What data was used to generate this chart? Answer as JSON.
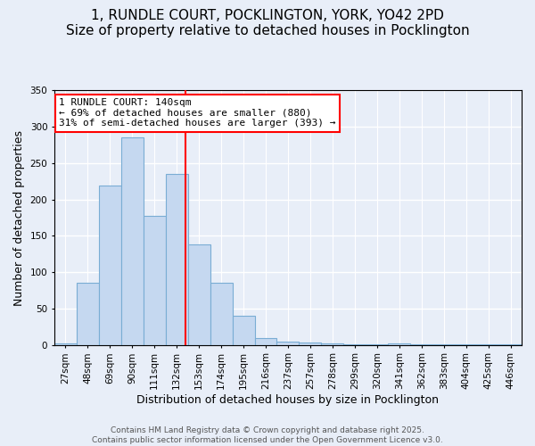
{
  "title": "1, RUNDLE COURT, POCKLINGTON, YORK, YO42 2PD",
  "subtitle": "Size of property relative to detached houses in Pocklington",
  "xlabel": "Distribution of detached houses by size in Pocklington",
  "ylabel": "Number of detached properties",
  "categories": [
    "27sqm",
    "48sqm",
    "69sqm",
    "90sqm",
    "111sqm",
    "132sqm",
    "153sqm",
    "174sqm",
    "195sqm",
    "216sqm",
    "237sqm",
    "257sqm",
    "278sqm",
    "299sqm",
    "320sqm",
    "341sqm",
    "362sqm",
    "383sqm",
    "404sqm",
    "425sqm",
    "446sqm"
  ],
  "values": [
    2,
    85,
    219,
    285,
    178,
    235,
    138,
    85,
    40,
    10,
    5,
    3,
    2,
    1,
    1,
    2,
    1,
    1,
    1,
    1,
    1
  ],
  "bar_color": "#c5d8f0",
  "bar_edge_color": "#7aadd4",
  "annotation_line1": "1 RUNDLE COURT: 140sqm",
  "annotation_line2": "← 69% of detached houses are smaller (880)",
  "annotation_line3": "31% of semi-detached houses are larger (393) →",
  "ylim": [
    0,
    350
  ],
  "yticks": [
    0,
    50,
    100,
    150,
    200,
    250,
    300,
    350
  ],
  "footer1": "Contains HM Land Registry data © Crown copyright and database right 2025.",
  "footer2": "Contains public sector information licensed under the Open Government Licence v3.0.",
  "bg_color": "#e8eef8",
  "plot_bg_color": "#e8eef8",
  "title_fontsize": 11,
  "axis_label_fontsize": 9,
  "tick_fontsize": 7.5,
  "footer_fontsize": 6.5,
  "annotation_fontsize": 8
}
